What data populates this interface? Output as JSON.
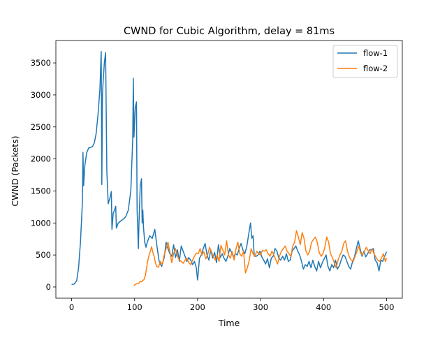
{
  "chart_data": {
    "type": "line",
    "title": "CWND for Cubic Algorithm, delay = 81ms",
    "xlabel": "Time",
    "ylabel": "CWND (Packets)",
    "xlim": [
      -25,
      525
    ],
    "ylim": [
      -175,
      3850
    ],
    "xticks": [
      0,
      100,
      200,
      300,
      400,
      500
    ],
    "yticks": [
      0,
      500,
      1000,
      1500,
      2000,
      2500,
      3000,
      3500
    ],
    "grid": false,
    "legend_position": "top-right",
    "series": [
      {
        "name": "flow-1",
        "color": "#1f77b4",
        "points": [
          [
            0,
            40
          ],
          [
            4,
            45
          ],
          [
            8,
            100
          ],
          [
            11,
            300
          ],
          [
            14,
            700
          ],
          [
            17,
            1300
          ],
          [
            18,
            2100
          ],
          [
            19,
            1580
          ],
          [
            21,
            1900
          ],
          [
            24,
            2100
          ],
          [
            27,
            2170
          ],
          [
            30,
            2180
          ],
          [
            33,
            2190
          ],
          [
            36,
            2250
          ],
          [
            39,
            2400
          ],
          [
            42,
            2700
          ],
          [
            45,
            3100
          ],
          [
            47,
            3680
          ],
          [
            48,
            1600
          ],
          [
            49,
            3000
          ],
          [
            50,
            3200
          ],
          [
            52,
            3500
          ],
          [
            54,
            3660
          ],
          [
            55,
            2700
          ],
          [
            56,
            1800
          ],
          [
            58,
            1300
          ],
          [
            61,
            1400
          ],
          [
            63,
            1490
          ],
          [
            64,
            900
          ],
          [
            66,
            1150
          ],
          [
            68,
            1200
          ],
          [
            70,
            1260
          ],
          [
            71,
            920
          ],
          [
            74,
            1000
          ],
          [
            78,
            1030
          ],
          [
            82,
            1060
          ],
          [
            86,
            1100
          ],
          [
            90,
            1200
          ],
          [
            94,
            1500
          ],
          [
            97,
            2300
          ],
          [
            98,
            3260
          ],
          [
            99,
            2340
          ],
          [
            101,
            2800
          ],
          [
            103,
            2890
          ],
          [
            104,
            1200
          ],
          [
            105,
            920
          ],
          [
            106,
            600
          ],
          [
            107,
            1000
          ],
          [
            109,
            1580
          ],
          [
            111,
            1690
          ],
          [
            112,
            1000
          ],
          [
            113,
            1200
          ],
          [
            114,
            940
          ],
          [
            116,
            700
          ],
          [
            118,
            620
          ],
          [
            120,
            700
          ],
          [
            124,
            800
          ],
          [
            128,
            760
          ],
          [
            132,
            900
          ],
          [
            136,
            600
          ],
          [
            139,
            400
          ],
          [
            143,
            320
          ],
          [
            147,
            460
          ],
          [
            150,
            700
          ],
          [
            153,
            600
          ],
          [
            156,
            520
          ],
          [
            159,
            480
          ],
          [
            162,
            660
          ],
          [
            165,
            460
          ],
          [
            168,
            580
          ],
          [
            171,
            400
          ],
          [
            174,
            640
          ],
          [
            177,
            560
          ],
          [
            180,
            480
          ],
          [
            183,
            400
          ],
          [
            186,
            460
          ],
          [
            189,
            420
          ],
          [
            192,
            350
          ],
          [
            195,
            400
          ],
          [
            198,
            300
          ],
          [
            199,
            200
          ],
          [
            200,
            110
          ],
          [
            203,
            450
          ],
          [
            206,
            500
          ],
          [
            209,
            600
          ],
          [
            212,
            680
          ],
          [
            215,
            500
          ],
          [
            218,
            420
          ],
          [
            221,
            580
          ],
          [
            224,
            450
          ],
          [
            227,
            540
          ],
          [
            230,
            380
          ],
          [
            233,
            660
          ],
          [
            236,
            460
          ],
          [
            239,
            520
          ],
          [
            242,
            450
          ],
          [
            245,
            400
          ],
          [
            248,
            480
          ],
          [
            251,
            600
          ],
          [
            254,
            540
          ],
          [
            257,
            470
          ],
          [
            260,
            520
          ],
          [
            263,
            500
          ],
          [
            266,
            600
          ],
          [
            269,
            680
          ],
          [
            272,
            580
          ],
          [
            275,
            520
          ],
          [
            278,
            630
          ],
          [
            281,
            820
          ],
          [
            284,
            1000
          ],
          [
            286,
            760
          ],
          [
            288,
            800
          ],
          [
            290,
            480
          ],
          [
            293,
            480
          ],
          [
            296,
            500
          ],
          [
            299,
            560
          ],
          [
            302,
            470
          ],
          [
            305,
            420
          ],
          [
            308,
            360
          ],
          [
            311,
            440
          ],
          [
            314,
            300
          ],
          [
            317,
            450
          ],
          [
            320,
            480
          ],
          [
            323,
            600
          ],
          [
            326,
            560
          ],
          [
            329,
            450
          ],
          [
            332,
            420
          ],
          [
            335,
            480
          ],
          [
            338,
            420
          ],
          [
            341,
            520
          ],
          [
            344,
            400
          ],
          [
            347,
            420
          ],
          [
            350,
            560
          ],
          [
            353,
            600
          ],
          [
            356,
            640
          ],
          [
            359,
            560
          ],
          [
            362,
            500
          ],
          [
            365,
            400
          ],
          [
            368,
            280
          ],
          [
            371,
            350
          ],
          [
            374,
            320
          ],
          [
            377,
            400
          ],
          [
            380,
            300
          ],
          [
            383,
            420
          ],
          [
            386,
            320
          ],
          [
            389,
            250
          ],
          [
            392,
            400
          ],
          [
            395,
            300
          ],
          [
            398,
            380
          ],
          [
            401,
            440
          ],
          [
            404,
            500
          ],
          [
            407,
            320
          ],
          [
            410,
            250
          ],
          [
            413,
            350
          ],
          [
            416,
            300
          ],
          [
            419,
            420
          ],
          [
            422,
            280
          ],
          [
            425,
            330
          ],
          [
            428,
            420
          ],
          [
            431,
            500
          ],
          [
            434,
            480
          ],
          [
            437,
            400
          ],
          [
            440,
            320
          ],
          [
            443,
            280
          ],
          [
            446,
            400
          ],
          [
            449,
            470
          ],
          [
            452,
            600
          ],
          [
            455,
            720
          ],
          [
            458,
            600
          ],
          [
            461,
            480
          ],
          [
            464,
            560
          ],
          [
            467,
            470
          ],
          [
            470,
            520
          ],
          [
            473,
            580
          ],
          [
            476,
            580
          ],
          [
            479,
            600
          ],
          [
            482,
            420
          ],
          [
            485,
            380
          ],
          [
            488,
            250
          ],
          [
            491,
            420
          ],
          [
            494,
            400
          ],
          [
            497,
            480
          ],
          [
            500,
            550
          ]
        ]
      },
      {
        "name": "flow-2",
        "color": "#ff7f0e",
        "points": [
          [
            99,
            20
          ],
          [
            101,
            40
          ],
          [
            103,
            50
          ],
          [
            105,
            50
          ],
          [
            107,
            60
          ],
          [
            109,
            90
          ],
          [
            111,
            80
          ],
          [
            113,
            100
          ],
          [
            115,
            120
          ],
          [
            117,
            180
          ],
          [
            119,
            300
          ],
          [
            121,
            420
          ],
          [
            123,
            500
          ],
          [
            125,
            560
          ],
          [
            127,
            630
          ],
          [
            129,
            540
          ],
          [
            131,
            480
          ],
          [
            133,
            380
          ],
          [
            135,
            320
          ],
          [
            138,
            310
          ],
          [
            141,
            400
          ],
          [
            144,
            350
          ],
          [
            147,
            500
          ],
          [
            150,
            600
          ],
          [
            153,
            700
          ],
          [
            156,
            550
          ],
          [
            159,
            380
          ],
          [
            162,
            520
          ],
          [
            165,
            600
          ],
          [
            168,
            480
          ],
          [
            171,
            420
          ],
          [
            174,
            400
          ],
          [
            177,
            370
          ],
          [
            180,
            420
          ],
          [
            183,
            450
          ],
          [
            186,
            380
          ],
          [
            189,
            350
          ],
          [
            192,
            420
          ],
          [
            195,
            480
          ],
          [
            198,
            530
          ],
          [
            201,
            520
          ],
          [
            204,
            600
          ],
          [
            207,
            500
          ],
          [
            210,
            550
          ],
          [
            213,
            440
          ],
          [
            216,
            500
          ],
          [
            219,
            620
          ],
          [
            222,
            550
          ],
          [
            225,
            480
          ],
          [
            228,
            420
          ],
          [
            231,
            500
          ],
          [
            234,
            400
          ],
          [
            237,
            650
          ],
          [
            240,
            580
          ],
          [
            243,
            500
          ],
          [
            246,
            720
          ],
          [
            249,
            500
          ],
          [
            252,
            450
          ],
          [
            255,
            550
          ],
          [
            258,
            420
          ],
          [
            261,
            600
          ],
          [
            264,
            700
          ],
          [
            267,
            520
          ],
          [
            270,
            480
          ],
          [
            273,
            560
          ],
          [
            276,
            220
          ],
          [
            279,
            300
          ],
          [
            282,
            420
          ],
          [
            285,
            600
          ],
          [
            288,
            520
          ],
          [
            291,
            480
          ],
          [
            294,
            560
          ],
          [
            297,
            520
          ],
          [
            300,
            500
          ],
          [
            303,
            570
          ],
          [
            306,
            560
          ],
          [
            309,
            580
          ],
          [
            312,
            520
          ],
          [
            315,
            480
          ],
          [
            318,
            560
          ],
          [
            321,
            500
          ],
          [
            324,
            430
          ],
          [
            327,
            360
          ],
          [
            330,
            480
          ],
          [
            333,
            560
          ],
          [
            336,
            600
          ],
          [
            339,
            640
          ],
          [
            342,
            560
          ],
          [
            345,
            520
          ],
          [
            348,
            480
          ],
          [
            351,
            640
          ],
          [
            354,
            700
          ],
          [
            357,
            880
          ],
          [
            360,
            780
          ],
          [
            363,
            660
          ],
          [
            366,
            850
          ],
          [
            369,
            760
          ],
          [
            372,
            560
          ],
          [
            375,
            500
          ],
          [
            378,
            560
          ],
          [
            381,
            700
          ],
          [
            384,
            740
          ],
          [
            387,
            780
          ],
          [
            390,
            700
          ],
          [
            393,
            540
          ],
          [
            396,
            480
          ],
          [
            399,
            520
          ],
          [
            402,
            620
          ],
          [
            405,
            780
          ],
          [
            408,
            700
          ],
          [
            411,
            520
          ],
          [
            414,
            460
          ],
          [
            417,
            380
          ],
          [
            420,
            300
          ],
          [
            423,
            420
          ],
          [
            426,
            500
          ],
          [
            429,
            560
          ],
          [
            432,
            680
          ],
          [
            435,
            720
          ],
          [
            438,
            560
          ],
          [
            441,
            470
          ],
          [
            444,
            420
          ],
          [
            447,
            400
          ],
          [
            450,
            480
          ],
          [
            453,
            560
          ],
          [
            456,
            640
          ],
          [
            459,
            520
          ],
          [
            462,
            500
          ],
          [
            465,
            560
          ],
          [
            468,
            620
          ],
          [
            471,
            560
          ],
          [
            474,
            520
          ],
          [
            477,
            600
          ],
          [
            480,
            520
          ],
          [
            483,
            470
          ],
          [
            486,
            420
          ],
          [
            489,
            400
          ],
          [
            492,
            450
          ],
          [
            495,
            520
          ],
          [
            498,
            400
          ],
          [
            500,
            450
          ]
        ]
      }
    ]
  }
}
